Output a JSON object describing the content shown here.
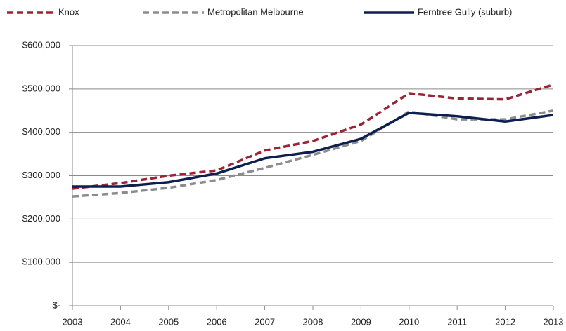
{
  "chart_data": {
    "type": "line",
    "x": [
      2003,
      2004,
      2005,
      2006,
      2007,
      2008,
      2009,
      2010,
      2011,
      2012,
      2013
    ],
    "xlim": [
      2003,
      2013
    ],
    "xticks": [
      2003,
      2004,
      2005,
      2006,
      2007,
      2008,
      2009,
      2010,
      2011,
      2012,
      2013
    ],
    "ylim": [
      0,
      600000
    ],
    "yticks": [
      {
        "value": 0,
        "label": "$-"
      },
      {
        "value": 100000,
        "label": "$100,000"
      },
      {
        "value": 200000,
        "label": "$200,000"
      },
      {
        "value": 300000,
        "label": "$300,000"
      },
      {
        "value": 400000,
        "label": "$400,000"
      },
      {
        "value": 500000,
        "label": "$500,000"
      },
      {
        "value": 600000,
        "label": "$600,000"
      }
    ],
    "grid": true,
    "legend": "top",
    "series": [
      {
        "name": "Knox",
        "color": "#9b2335",
        "dashed": true,
        "values": [
          270000,
          283000,
          300000,
          312000,
          358000,
          380000,
          418000,
          490000,
          478000,
          476000,
          510000
        ]
      },
      {
        "name": "Metropolitan Melbourne",
        "color": "#8c8c8c",
        "dashed": true,
        "values": [
          252000,
          260000,
          272000,
          290000,
          318000,
          348000,
          380000,
          448000,
          430000,
          430000,
          450000
        ]
      },
      {
        "name": "Ferntree Gully (suburb)",
        "color": "#0d1f4f",
        "dashed": false,
        "values": [
          275000,
          275000,
          285000,
          305000,
          340000,
          355000,
          385000,
          445000,
          437000,
          425000,
          440000
        ]
      }
    ]
  }
}
